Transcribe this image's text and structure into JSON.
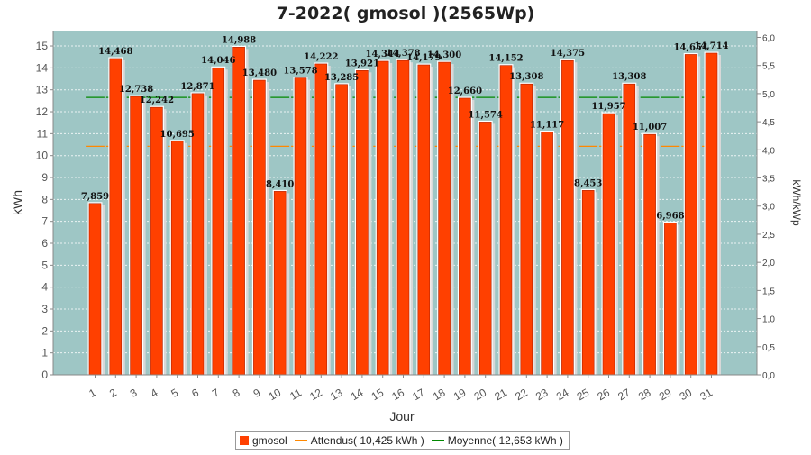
{
  "chart_data": {
    "type": "bar",
    "title": "7-2022( gmosol )(2565Wp)",
    "xlabel": "Jour",
    "ylabel": "kWh",
    "ylabel_right": "kWh/kWp",
    "ylim": [
      0,
      15.7
    ],
    "ylim_right": [
      0,
      6.12
    ],
    "yticks": [
      0,
      1,
      2,
      3,
      4,
      5,
      6,
      7,
      8,
      9,
      10,
      11,
      12,
      13,
      14,
      15
    ],
    "yticks_right": [
      "0,0",
      "0,5",
      "1,0",
      "1,5",
      "2,0",
      "2,5",
      "3,0",
      "3,5",
      "4,0",
      "4,5",
      "5,0",
      "5,5",
      "6,0"
    ],
    "yticks_right_values": [
      0,
      0.5,
      1,
      1.5,
      2,
      2.5,
      3,
      3.5,
      4,
      4.5,
      5,
      5.5,
      6
    ],
    "grid": true,
    "legend": "bottom",
    "categories": [
      "1",
      "2",
      "3",
      "4",
      "5",
      "6",
      "7",
      "8",
      "9",
      "10",
      "11",
      "12",
      "13",
      "14",
      "15",
      "16",
      "17",
      "18",
      "19",
      "20",
      "21",
      "22",
      "23",
      "24",
      "25",
      "26",
      "27",
      "28",
      "29",
      "30",
      "31"
    ],
    "series": [
      {
        "name": "gmosol",
        "values": [
          7.859,
          14.468,
          12.738,
          12.242,
          10.695,
          12.871,
          14.046,
          14.988,
          13.48,
          8.41,
          13.578,
          14.222,
          13.285,
          13.921,
          14.344,
          14.378,
          14.179,
          14.3,
          12.66,
          11.574,
          14.152,
          13.308,
          11.117,
          14.375,
          8.453,
          11.957,
          13.308,
          11.007,
          6.968,
          14.654,
          14.714
        ],
        "labels": [
          "7,859",
          "14,468",
          "12,738",
          "12,242",
          "10,695",
          "12,871",
          "14,046",
          "14,988",
          "13,480",
          "8,410",
          "13,578",
          "14,222",
          "13,285",
          "13,921",
          "14,344",
          "14,378",
          "14,179",
          "14,300",
          "12,660",
          "11,574",
          "14,152",
          "13,308",
          "11,117",
          "14,375",
          "8,453",
          "11,957",
          "13,308",
          "11,007",
          "6,968",
          "14,654",
          "14,714"
        ]
      }
    ],
    "reference_lines": [
      {
        "name": "Attendus( 10,425 kWh )",
        "value": 10.425
      },
      {
        "name": "Moyenne( 12,653 kWh )",
        "value": 12.653
      }
    ]
  },
  "colors": {
    "bar": "#ff4000",
    "bar_edge": "#b02000",
    "bar_shadow": "#d8d8d8",
    "plot_bg": "#9ec6c5",
    "grid": "#ffffff",
    "attendus": "#ff8800",
    "moyenne": "#008800"
  }
}
